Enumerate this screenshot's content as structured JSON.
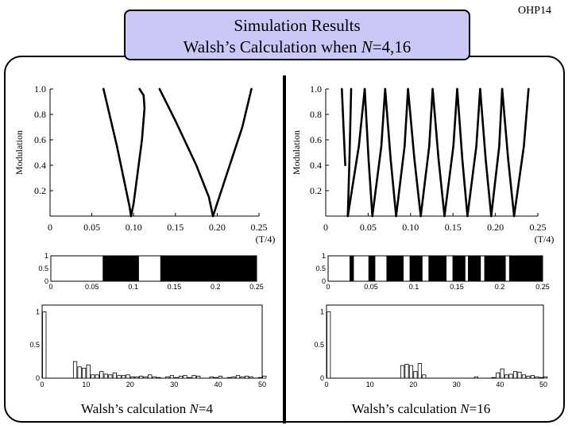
{
  "slide": {
    "tag": "OHP14"
  },
  "title": {
    "line1": "Simulation Results",
    "line2_prefix": "Walsh’s Calculation when ",
    "line2_var": "N",
    "line2_suffix": "=4,16"
  },
  "captions": {
    "left": {
      "prefix": "Walsh’s calculation ",
      "var": "N",
      "suffix": "=4"
    },
    "right": {
      "prefix": "Walsh’s calculation ",
      "var": "N",
      "suffix": "=16"
    }
  },
  "chart_data": [
    {
      "id": "mod4",
      "type": "line",
      "ylabel": "Modulation",
      "xunit": "(T/4)",
      "xlim": [
        0,
        0.25
      ],
      "ylim": [
        0,
        1.0
      ],
      "xticks": [
        0,
        0.05,
        0.1,
        0.15,
        0.2,
        0.25
      ],
      "xticklabels": [
        "0",
        "0.05",
        "0.10",
        "0.15",
        "0.20",
        "0.25"
      ],
      "yticks": [
        0.2,
        0.4,
        0.6,
        0.8,
        1.0
      ],
      "yticklabels": [
        "0.2",
        "0.4",
        "0.6",
        "0.8",
        "1.0"
      ],
      "series": [
        {
          "x": [
            0.064,
            0.08,
            0.095,
            0.097
          ],
          "y": [
            1.0,
            0.55,
            0.08,
            0.0
          ]
        },
        {
          "x": [
            0.097,
            0.1,
            0.104,
            0.11,
            0.113,
            0.112,
            0.107
          ],
          "y": [
            0.0,
            0.1,
            0.3,
            0.6,
            0.85,
            0.95,
            1.0
          ]
        },
        {
          "x": [
            0.131,
            0.15,
            0.175,
            0.19,
            0.195
          ],
          "y": [
            1.0,
            0.75,
            0.4,
            0.15,
            0.0
          ]
        },
        {
          "x": [
            0.195,
            0.21,
            0.23,
            0.241
          ],
          "y": [
            0.0,
            0.3,
            0.7,
            1.0
          ]
        }
      ]
    },
    {
      "id": "mod16",
      "type": "line",
      "ylabel": "Modulation",
      "xunit": "(T/4)",
      "xlim": [
        0,
        0.25
      ],
      "ylim": [
        0,
        1.0
      ],
      "xticks": [
        0,
        0.05,
        0.1,
        0.15,
        0.2,
        0.25
      ],
      "xticklabels": [
        "0",
        "0.05",
        "0.10",
        "0.15",
        "0.20",
        "0.25"
      ],
      "yticks": [
        0.2,
        0.4,
        0.6,
        0.8,
        1.0
      ],
      "yticklabels": [
        "0.2",
        "0.4",
        "0.6",
        "0.8",
        "1.0"
      ],
      "minima": [
        0.026,
        0.055,
        0.083,
        0.112,
        0.14,
        0.167,
        0.195,
        0.222
      ],
      "peaks": [
        0.019,
        0.03,
        0.046,
        0.07,
        0.097,
        0.126,
        0.155,
        0.182,
        0.208,
        0.239
      ]
    },
    {
      "id": "walsh4",
      "type": "bar",
      "xlim": [
        0,
        0.25
      ],
      "ylim": [
        0,
        1
      ],
      "xticks": [
        0,
        0.05,
        0.1,
        0.15,
        0.2,
        0.25
      ],
      "xticklabels": [
        "0",
        "0.05",
        "0.1",
        "0.15",
        "0.2",
        "0.25"
      ],
      "yticks": [
        0,
        0.5,
        1
      ],
      "yticklabels": [
        "0",
        "0.5",
        "1"
      ],
      "filled_intervals": [
        [
          0.063,
          0.107
        ],
        [
          0.133,
          0.25
        ]
      ]
    },
    {
      "id": "walsh16",
      "type": "bar",
      "xlim": [
        0,
        0.25
      ],
      "ylim": [
        0,
        1
      ],
      "xticks": [
        0,
        0.05,
        0.1,
        0.15,
        0.2,
        0.25
      ],
      "xticklabels": [
        "0",
        "0.05",
        "0.1",
        "0.15",
        "0.2",
        "0.25"
      ],
      "yticks": [
        0,
        0.5,
        1
      ],
      "yticklabels": [
        "0",
        "0.5",
        "1"
      ],
      "filled_intervals": [
        [
          0.025,
          0.03
        ],
        [
          0.047,
          0.055
        ],
        [
          0.068,
          0.088
        ],
        [
          0.095,
          0.11
        ],
        [
          0.117,
          0.138
        ],
        [
          0.145,
          0.16
        ],
        [
          0.163,
          0.178
        ],
        [
          0.182,
          0.207
        ],
        [
          0.211,
          0.25
        ]
      ]
    },
    {
      "id": "spec4",
      "type": "bar",
      "xlim": [
        0,
        50
      ],
      "ylim": [
        0,
        1.1
      ],
      "xticks": [
        0,
        10,
        20,
        30,
        40,
        50
      ],
      "xticklabels": [
        "0",
        "10",
        "20",
        "30",
        "40",
        "50"
      ],
      "yticks": [
        0,
        0.5,
        1
      ],
      "yticklabels": [
        "0",
        "0.5",
        "1"
      ],
      "values": [
        1.0,
        0,
        0,
        0,
        0,
        0,
        0,
        0.25,
        0.17,
        0.15,
        0.2,
        0.05,
        0.05,
        0.1,
        0.06,
        0.05,
        0.08,
        0.04,
        0.04,
        0.05,
        0.02,
        0.02,
        0.03,
        0.02,
        0.05,
        0.02,
        0.01,
        0,
        0.02,
        0.04,
        0.01,
        0.03,
        0.04,
        0.01,
        0.04,
        0.03,
        0,
        0,
        0.02,
        0.01,
        0.03,
        0,
        0.01,
        0.02,
        0.04,
        0.02,
        0.03,
        0.02,
        0,
        0.01,
        0.03
      ]
    },
    {
      "id": "spec16",
      "type": "bar",
      "xlim": [
        0,
        50
      ],
      "ylim": [
        0,
        1.1
      ],
      "xticks": [
        0,
        10,
        20,
        30,
        40,
        50
      ],
      "xticklabels": [
        "0",
        "10",
        "20",
        "30",
        "40",
        "50"
      ],
      "yticks": [
        0,
        0.5,
        1
      ],
      "yticklabels": [
        "0",
        "0.5",
        "1"
      ],
      "values": [
        1.0,
        0,
        0,
        0,
        0,
        0,
        0,
        0,
        0,
        0,
        0,
        0,
        0,
        0,
        0,
        0,
        0,
        0.19,
        0.21,
        0.19,
        0.1,
        0.22,
        0.05,
        0,
        0,
        0,
        0,
        0,
        0,
        0,
        0,
        0,
        0,
        0,
        0.02,
        0,
        0,
        0,
        0.01,
        0.08,
        0.14,
        0.05,
        0.06,
        0.1,
        0.09,
        0.05,
        0.03,
        0.04,
        0.02,
        0.01,
        0.02
      ]
    }
  ]
}
